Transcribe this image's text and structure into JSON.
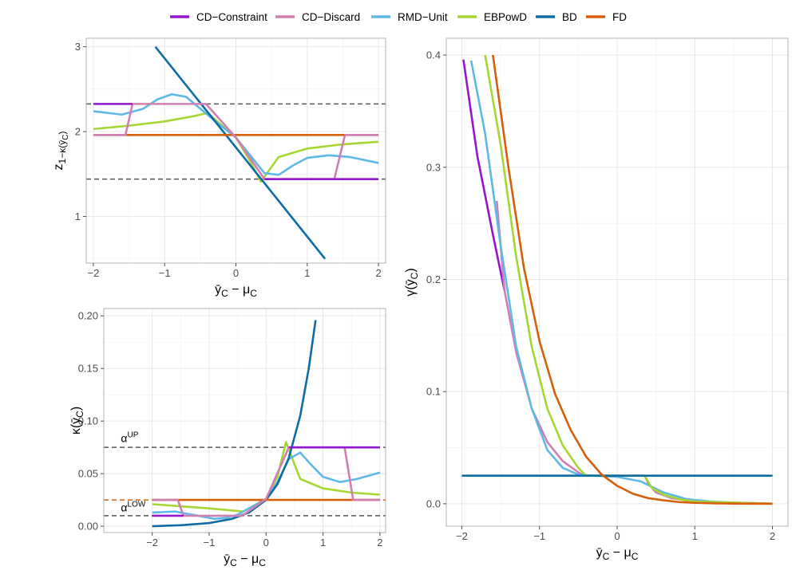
{
  "legend": {
    "position": "top",
    "items": [
      {
        "label": "CD−Constraint",
        "color": "#9414d0"
      },
      {
        "label": "CD−Discard",
        "color": "#d17fb0"
      },
      {
        "label": "RMD−Unit",
        "color": "#5eb8e8"
      },
      {
        "label": "EBPowD",
        "color": "#a6d632"
      },
      {
        "label": "BD",
        "color": "#0d6da3"
      },
      {
        "label": "FD",
        "color": "#d66009"
      }
    ]
  },
  "chart_data": [
    {
      "id": "top-left",
      "type": "line",
      "xlabel": "ȳC − μC",
      "ylabel": "z1−κ(ȳC)",
      "xlim": [
        -2.1,
        2.1
      ],
      "ylim": [
        0.45,
        3.1
      ],
      "xticks": [
        -2,
        -1,
        0,
        1,
        2
      ],
      "yticks": [
        1,
        2,
        3
      ],
      "grid": true,
      "hlines": [
        {
          "y": 2.326,
          "style": "dashed",
          "color": "#555555"
        },
        {
          "y": 1.44,
          "style": "dashed",
          "color": "#555555"
        }
      ],
      "series": [
        {
          "name": "EBPowD",
          "color": "#a6d632",
          "x": [
            -2.0,
            -1.5,
            -1.0,
            -0.6,
            -0.4,
            0.0,
            0.2,
            0.35,
            0.6,
            1.0,
            1.5,
            2.0
          ],
          "y": [
            2.03,
            2.07,
            2.12,
            2.18,
            2.22,
            1.93,
            1.65,
            1.41,
            1.7,
            1.8,
            1.85,
            1.88
          ]
        },
        {
          "name": "RMD−Unit",
          "color": "#5eb8e8",
          "x": [
            -2.0,
            -1.6,
            -1.3,
            -1.1,
            -0.9,
            -0.7,
            -0.5,
            -0.3,
            0.0,
            0.2,
            0.4,
            0.6,
            0.8,
            1.0,
            1.3,
            1.6,
            2.0
          ],
          "y": [
            2.24,
            2.2,
            2.27,
            2.38,
            2.44,
            2.41,
            2.27,
            2.13,
            1.93,
            1.72,
            1.51,
            1.49,
            1.6,
            1.69,
            1.72,
            1.7,
            1.63
          ]
        },
        {
          "name": "BD",
          "color": "#0d6da3",
          "x": [
            -1.13,
            1.25
          ],
          "y": [
            3.0,
            0.5
          ]
        },
        {
          "name": "FD",
          "color": "#d66009",
          "x": [
            -2.0,
            2.0
          ],
          "y": [
            1.96,
            1.96
          ]
        },
        {
          "name": "CD−Discard",
          "color": "#d17fb0",
          "x": [
            -2.0,
            -1.55,
            -1.45,
            -0.42,
            0.0,
            0.4,
            1.38,
            1.53,
            2.0
          ],
          "y": [
            1.96,
            1.96,
            2.326,
            2.326,
            1.93,
            1.44,
            1.44,
            1.96,
            1.96
          ]
        },
        {
          "name": "CD−Constraint",
          "color": "#9414d0",
          "x": [
            -2.0,
            -1.45,
            2.0
          ],
          "y": [
            2.326,
            2.326,
            1.44
          ],
          "segments": [
            [
              [
                -2.0,
                2.326
              ],
              [
                -1.45,
                2.326
              ]
            ],
            [
              [
                0.4,
                1.44
              ],
              [
                2.0,
                1.44
              ]
            ]
          ]
        }
      ]
    },
    {
      "id": "bottom-left",
      "type": "line",
      "xlabel": "ȳC − μC",
      "ylabel": "κ(ȳC)",
      "xlim": [
        -2.85,
        2.1
      ],
      "ylim": [
        -0.006,
        0.207
      ],
      "xticks": [
        -2,
        -1,
        0,
        1,
        2
      ],
      "yticks": [
        0.0,
        0.05,
        0.1,
        0.15,
        0.2
      ],
      "ytick_labels": [
        "0.00",
        "0.05",
        "0.10",
        "0.15",
        "0.20"
      ],
      "grid": true,
      "hlines": [
        {
          "y": 0.075,
          "style": "dashed",
          "color": "#555555",
          "label": "αUP"
        },
        {
          "y": 0.025,
          "style": "dashed",
          "color": "#d66009"
        },
        {
          "y": 0.01,
          "style": "dashed",
          "color": "#555555",
          "label": "αLOW"
        }
      ],
      "annotations": [
        {
          "text": "α",
          "sup": "UP",
          "x": -2.55,
          "y": 0.08
        },
        {
          "text": "α",
          "sup": "LOW",
          "x": -2.55,
          "y": 0.014
        }
      ],
      "series": [
        {
          "name": "EBPowD",
          "color": "#a6d632",
          "x": [
            -2.0,
            -1.5,
            -1.0,
            -0.6,
            -0.4,
            0.0,
            0.2,
            0.35,
            0.6,
            1.0,
            1.5,
            2.0
          ],
          "y": [
            0.021,
            0.019,
            0.017,
            0.015,
            0.014,
            0.026,
            0.047,
            0.08,
            0.045,
            0.036,
            0.032,
            0.03
          ]
        },
        {
          "name": "RMD−Unit",
          "color": "#5eb8e8",
          "x": [
            -2.0,
            -1.6,
            -1.3,
            -1.1,
            -0.9,
            -0.7,
            -0.5,
            -0.3,
            0.0,
            0.2,
            0.4,
            0.6,
            0.8,
            1.0,
            1.3,
            1.6,
            2.0
          ],
          "y": [
            0.013,
            0.014,
            0.011,
            0.009,
            0.007,
            0.008,
            0.011,
            0.017,
            0.026,
            0.042,
            0.064,
            0.07,
            0.058,
            0.047,
            0.042,
            0.045,
            0.051
          ]
        },
        {
          "name": "BD",
          "color": "#0d6da3",
          "x": [
            -2.0,
            -1.5,
            -1.0,
            -0.6,
            -0.3,
            0.0,
            0.2,
            0.4,
            0.6,
            0.75,
            0.87
          ],
          "y": [
            0.0,
            0.001,
            0.003,
            0.007,
            0.013,
            0.025,
            0.04,
            0.065,
            0.105,
            0.15,
            0.196
          ]
        },
        {
          "name": "FD",
          "color": "#d66009",
          "x": [
            -2.0,
            2.0
          ],
          "y": [
            0.025,
            0.025
          ]
        },
        {
          "name": "CD−Discard",
          "color": "#d17fb0",
          "x": [
            -2.0,
            -1.55,
            -1.45,
            -0.42,
            0.0,
            0.4,
            1.38,
            1.53,
            2.0
          ],
          "y": [
            0.025,
            0.025,
            0.01,
            0.01,
            0.026,
            0.075,
            0.075,
            0.025,
            0.025
          ]
        },
        {
          "name": "CD−Constraint",
          "color": "#9414d0",
          "x": [
            -2.0,
            -1.45,
            2.0
          ],
          "y": [
            0.01,
            0.01,
            0.075
          ],
          "segments": [
            [
              [
                -2.0,
                0.01
              ],
              [
                -1.45,
                0.01
              ]
            ],
            [
              [
                0.4,
                0.075
              ],
              [
                2.0,
                0.075
              ]
            ]
          ]
        }
      ]
    },
    {
      "id": "right",
      "type": "line",
      "xlabel": "ȳC − μC",
      "ylabel": "γ(ȳC)",
      "xlim": [
        -2.2,
        2.2
      ],
      "ylim": [
        -0.02,
        0.415
      ],
      "xticks": [
        -2,
        -1,
        0,
        1,
        2
      ],
      "yticks": [
        0.0,
        0.1,
        0.2,
        0.3,
        0.4
      ],
      "ytick_labels": [
        "0.0",
        "0.1",
        "0.2",
        "0.3",
        "0.4"
      ],
      "grid": true,
      "series": [
        {
          "name": "CD−Constraint",
          "color": "#9414d0",
          "x": [
            -1.98,
            -1.8,
            -1.6,
            -1.45
          ],
          "y": [
            0.396,
            0.31,
            0.24,
            0.19
          ]
        },
        {
          "name": "CD−Discard",
          "color": "#d17fb0",
          "x": [
            -1.55,
            -1.45,
            -1.3,
            -1.1,
            -0.9,
            -0.7,
            -0.5,
            -0.42,
            0.36,
            0.4,
            0.5,
            0.7,
            1.0,
            1.5,
            2.0
          ],
          "y": [
            0.27,
            0.19,
            0.135,
            0.085,
            0.055,
            0.038,
            0.028,
            0.025,
            0.025,
            0.018,
            0.01,
            0.005,
            0.002,
            0.0,
            0.0
          ]
        },
        {
          "name": "RMD−Unit",
          "color": "#5eb8e8",
          "x": [
            -1.88,
            -1.7,
            -1.5,
            -1.3,
            -1.1,
            -0.9,
            -0.7,
            -0.5,
            -0.3,
            0.0,
            0.3,
            0.6,
            0.9,
            1.2,
            1.5,
            2.0
          ],
          "y": [
            0.395,
            0.33,
            0.23,
            0.14,
            0.085,
            0.048,
            0.032,
            0.026,
            0.025,
            0.024,
            0.02,
            0.01,
            0.004,
            0.002,
            0.001,
            0.0
          ]
        },
        {
          "name": "EBPowD",
          "color": "#a6d632",
          "x": [
            -1.7,
            -1.5,
            -1.3,
            -1.1,
            -0.9,
            -0.7,
            -0.5,
            -0.4,
            0.35,
            0.45,
            0.6,
            0.8,
            1.0,
            1.5,
            2.0
          ],
          "y": [
            0.4,
            0.32,
            0.22,
            0.14,
            0.085,
            0.052,
            0.032,
            0.025,
            0.025,
            0.014,
            0.008,
            0.004,
            0.002,
            0.001,
            0.0
          ]
        },
        {
          "name": "BD",
          "color": "#0d6da3",
          "x": [
            -2.0,
            2.0
          ],
          "y": [
            0.025,
            0.025
          ]
        },
        {
          "name": "FD",
          "color": "#d66009",
          "x": [
            -1.6,
            -1.4,
            -1.2,
            -1.0,
            -0.8,
            -0.6,
            -0.4,
            -0.2,
            0.0,
            0.2,
            0.4,
            0.6,
            0.8,
            1.0,
            1.3,
            1.6,
            2.0
          ],
          "y": [
            0.4,
            0.3,
            0.21,
            0.145,
            0.098,
            0.066,
            0.042,
            0.026,
            0.016,
            0.009,
            0.005,
            0.003,
            0.0015,
            0.0008,
            0.0003,
            0.0001,
            0.0
          ]
        }
      ]
    }
  ]
}
